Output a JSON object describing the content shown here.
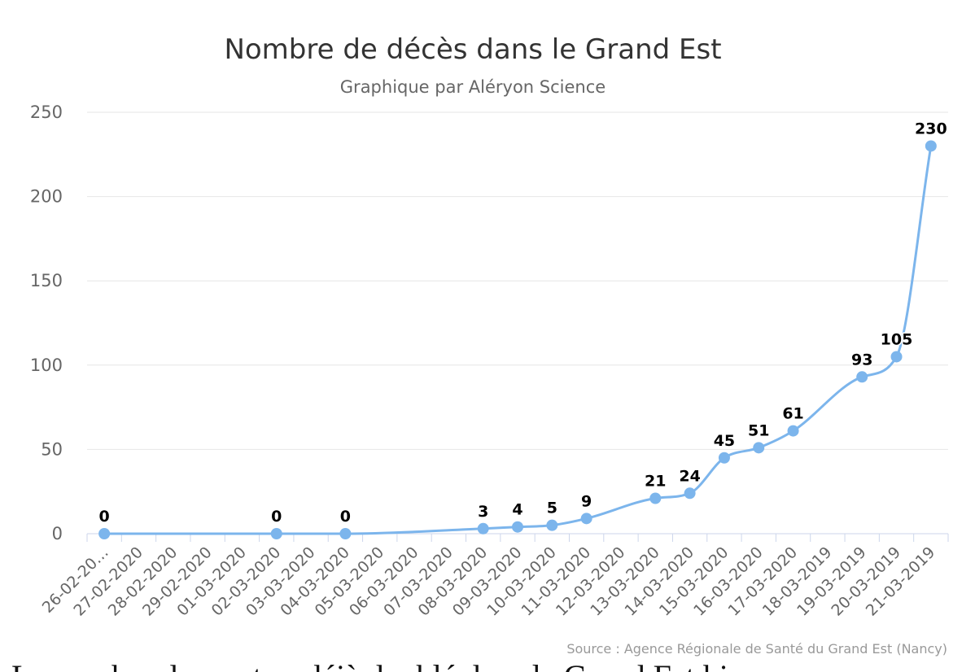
{
  "chart_data": {
    "type": "line",
    "title": "Nombre de décès dans le Grand Est",
    "subtitle": "Graphique par Aléryon Science",
    "credits": "Source : Agence Régionale de Santé du Grand Est (Nancy)",
    "categories": [
      "26-02-20…",
      "27-02-2020",
      "28-02-2020",
      "29-02-2020",
      "01-03-2020",
      "02-03-2020",
      "03-03-2020",
      "04-03-2020",
      "05-03-2020",
      "06-03-2020",
      "07-03-2020",
      "08-03-2020",
      "09-03-2020",
      "10-03-2020",
      "11-03-2020",
      "12-03-2020",
      "13-03-2020",
      "14-03-2020",
      "15-03-2020",
      "16-03-2020",
      "17-03-2020",
      "18-03-2019",
      "19-03-2019",
      "20-03-2019",
      "21-03-2019"
    ],
    "points": [
      {
        "x": 0,
        "y": 0
      },
      {
        "x": 5,
        "y": 0
      },
      {
        "x": 7,
        "y": 0
      },
      {
        "x": 11,
        "y": 3
      },
      {
        "x": 12,
        "y": 4
      },
      {
        "x": 13,
        "y": 5
      },
      {
        "x": 14,
        "y": 9
      },
      {
        "x": 16,
        "y": 21
      },
      {
        "x": 17,
        "y": 24
      },
      {
        "x": 18,
        "y": 45
      },
      {
        "x": 19,
        "y": 51
      },
      {
        "x": 20,
        "y": 61
      },
      {
        "x": 22,
        "y": 93
      },
      {
        "x": 23,
        "y": 105
      },
      {
        "x": 24,
        "y": 230
      }
    ],
    "yticks": [
      0,
      50,
      100,
      150,
      200,
      250
    ],
    "ylim": [
      0,
      250
    ],
    "grid": true,
    "legend": "none",
    "colors": {
      "line": "#7cb5ec",
      "grid": "#e6e6e6",
      "axis": "#ccd6eb"
    }
  },
  "bottom_text": "Le nombre de morts a déjà doublé dans le Grand Est hier"
}
